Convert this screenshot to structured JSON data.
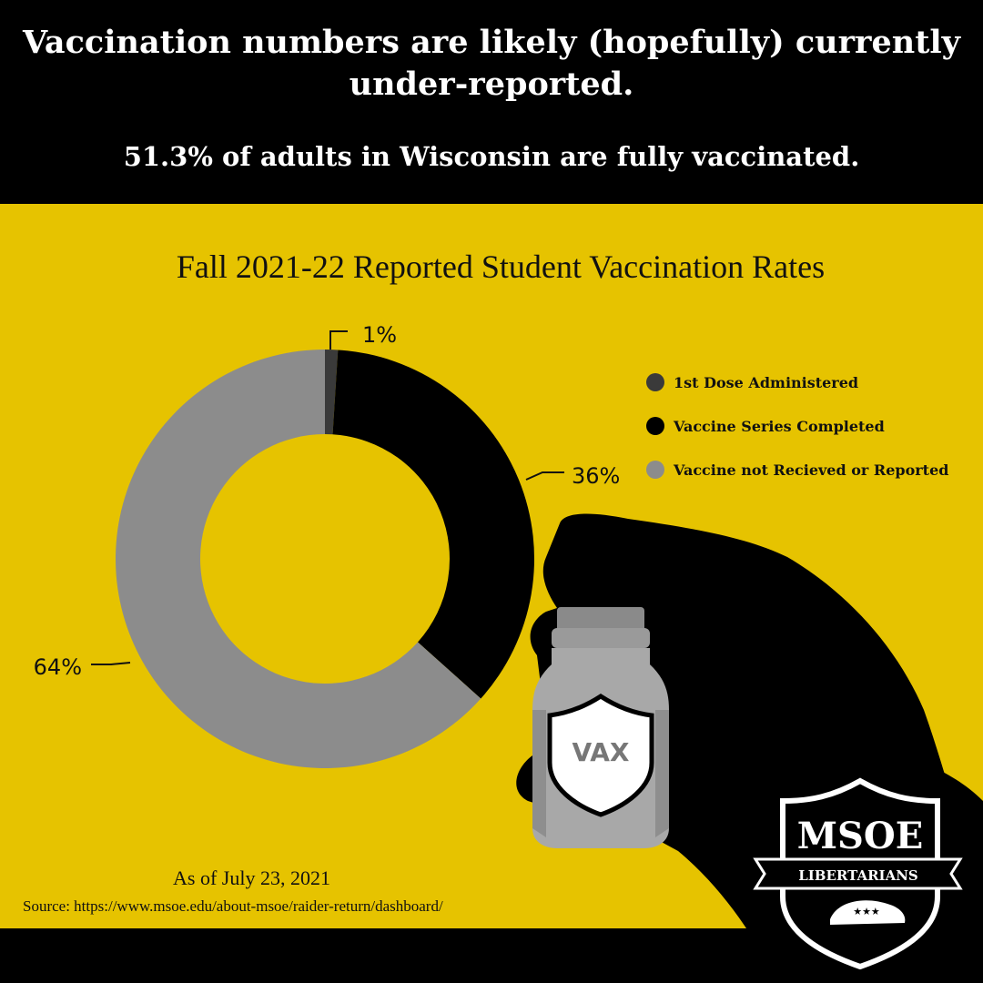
{
  "header": {
    "headline": "Vaccination numbers are likely (hopefully) currently under-reported.",
    "subline": "51.3% of adults in Wisconsin are fully vaccinated."
  },
  "chart_data": {
    "type": "pie",
    "title": "Fall 2021-22 Reported Student Vaccination Rates",
    "categories": [
      "1st Dose Administered",
      "Vaccine Series Completed",
      "Vaccine not Recieved or Reported"
    ],
    "values": [
      1,
      36,
      64
    ],
    "value_labels": [
      "1%",
      "36%",
      "64%"
    ],
    "colors": [
      "#3a3a3a",
      "#000000",
      "#8c8c8c"
    ],
    "legend_placement": "right"
  },
  "footer": {
    "as_of": "As of July 23, 2021",
    "source": "Source: https://www.msoe.edu/about-msoe/raider-return/dashboard/"
  },
  "vial": {
    "label": "VAX"
  },
  "logo": {
    "line1": "MSOE",
    "line2": "LIBERTARIANS"
  }
}
